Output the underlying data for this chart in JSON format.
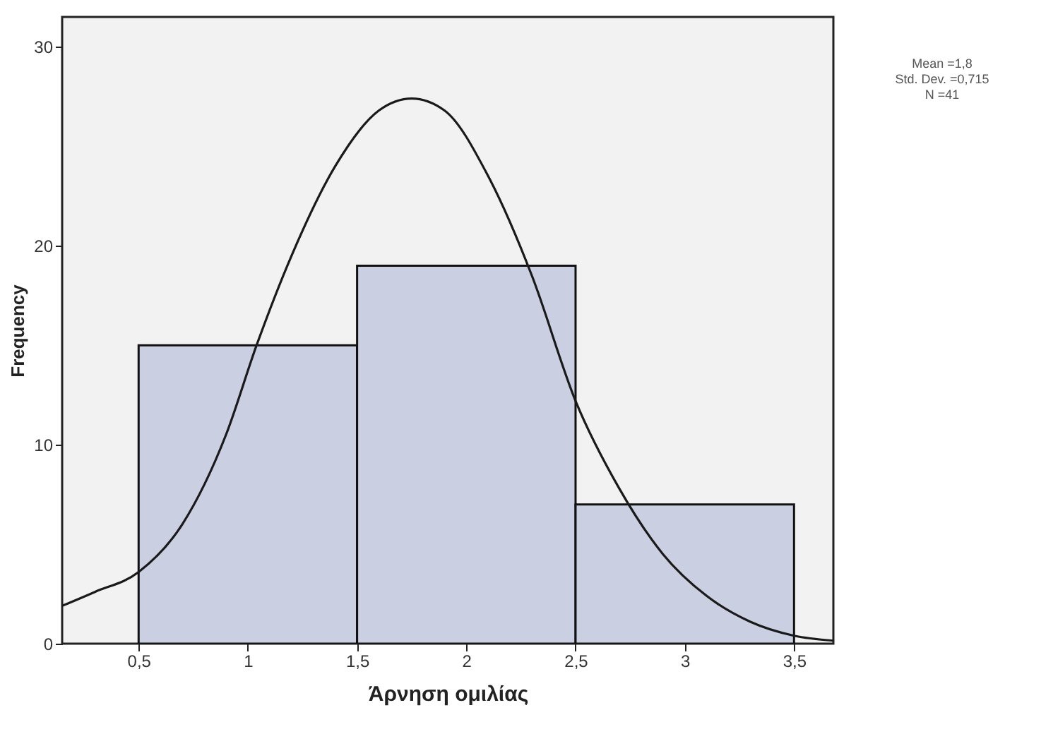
{
  "chart_data": {
    "type": "histogram",
    "xlabel": "Άρνηση ομιλίας",
    "ylabel": "Frequency",
    "annotations": [
      "Mean =1,8",
      "Std. Dev. =0,715",
      "N =41"
    ],
    "bins": [
      0.5,
      1.5,
      2.5,
      3.5
    ],
    "series": [
      {
        "color": "#cbcfe2",
        "values": [
          15,
          19,
          7
        ]
      },
      {
        "type": "line",
        "color": "#1a1a1a",
        "x": [
          0.15,
          0.3,
          0.5,
          0.7,
          0.9,
          1.04,
          1.2,
          1.4,
          1.6,
          1.75,
          1.9,
          2.1,
          2.3,
          2.5,
          2.7,
          2.9,
          3.1,
          3.3,
          3.5,
          3.68
        ],
        "values": [
          1.9,
          2.6,
          3.6,
          6,
          10.5,
          15,
          19.5,
          24,
          26.8,
          27.4,
          26.8,
          23.5,
          18.5,
          12.2,
          7.8,
          4.5,
          2.4,
          1.1,
          0.4,
          0.15
        ]
      }
    ],
    "xlim": [
      0.15,
      3.68
    ],
    "ylim": [
      0,
      31.5
    ],
    "xticks": [
      {
        "value": 0.5,
        "label": "0,5"
      },
      1,
      {
        "value": 1.5,
        "label": "1,5"
      },
      2,
      {
        "value": 2.5,
        "label": "2,5"
      },
      3,
      {
        "value": 3.5,
        "label": "3,5"
      }
    ],
    "yticks": [
      0,
      10,
      20,
      30
    ],
    "grid": false
  }
}
